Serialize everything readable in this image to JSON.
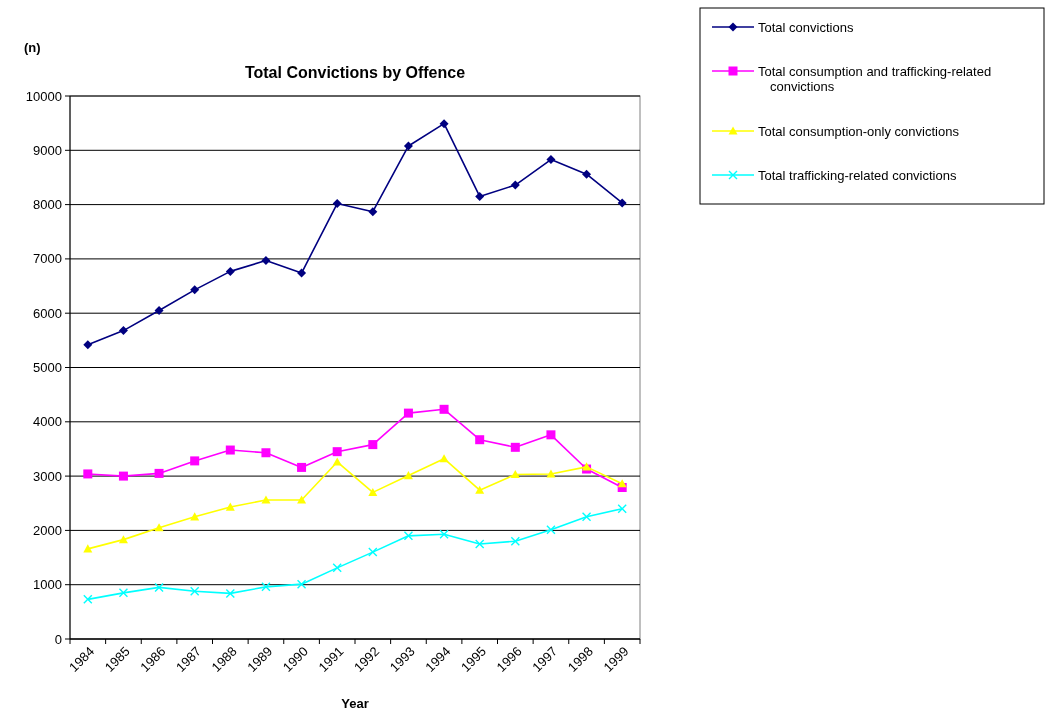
{
  "chart_data": {
    "type": "line",
    "title": "Total Convictions by Offence",
    "xlabel": "Year",
    "ylabel": "(n)",
    "categories": [
      "1984",
      "1985",
      "1986",
      "1987",
      "1988",
      "1989",
      "1990",
      "1991",
      "1992",
      "1993",
      "1994",
      "1995",
      "1996",
      "1997",
      "1998",
      "1999"
    ],
    "series": [
      {
        "name": "Total convictions",
        "color": "#000080",
        "marker": "diamond",
        "values": [
          5420,
          5680,
          6050,
          6430,
          6770,
          6970,
          6740,
          8020,
          7870,
          9080,
          9490,
          8150,
          8360,
          8830,
          8560,
          8030
        ]
      },
      {
        "name": "Total consumption and trafficking-related convictions",
        "color": "#ff00ff",
        "marker": "square",
        "values": [
          3040,
          3000,
          3050,
          3280,
          3480,
          3430,
          3160,
          3450,
          3580,
          4160,
          4230,
          3670,
          3530,
          3760,
          3130,
          2790
        ]
      },
      {
        "name": "Total consumption-only convictions",
        "color": "#ffff00",
        "marker": "triangle",
        "values": [
          1660,
          1830,
          2050,
          2250,
          2430,
          2560,
          2560,
          3260,
          2700,
          3010,
          3320,
          2740,
          3030,
          3040,
          3170,
          2860
        ]
      },
      {
        "name": "Total trafficking-related convictions",
        "color": "#00ffff",
        "marker": "cross",
        "values": [
          730,
          850,
          950,
          880,
          840,
          960,
          1010,
          1310,
          1600,
          1900,
          1930,
          1750,
          1800,
          2010,
          2250,
          2400
        ]
      }
    ],
    "ylim": [
      0,
      10000
    ],
    "yticks": [
      0,
      1000,
      2000,
      3000,
      4000,
      5000,
      6000,
      7000,
      8000,
      9000,
      10000
    ],
    "grid": "y",
    "legend": "top right",
    "line_style": "solid"
  }
}
